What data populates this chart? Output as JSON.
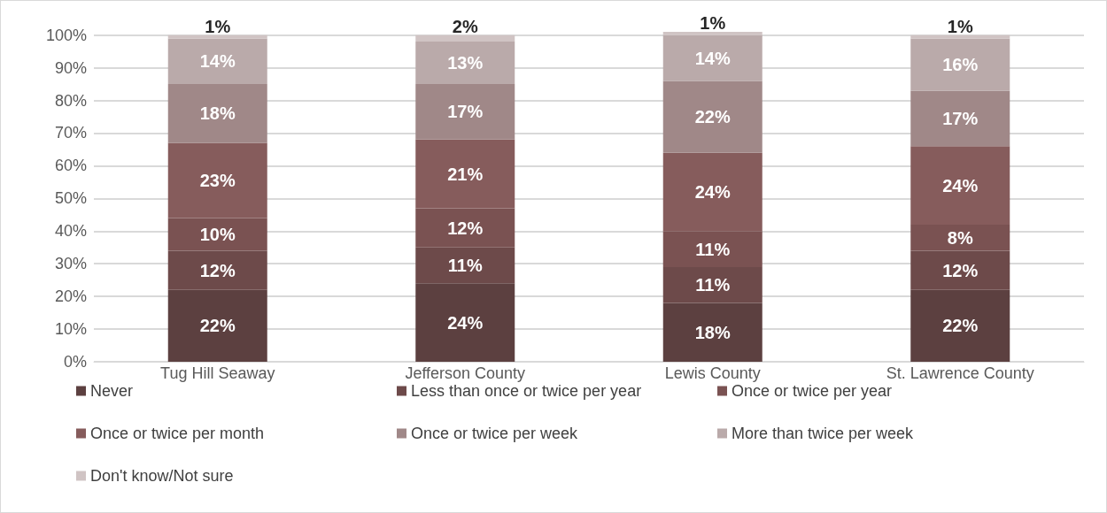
{
  "chart_data": {
    "type": "bar",
    "stacked": true,
    "grid": "y",
    "legend": "bottom",
    "categories": [
      "Tug Hill Seaway",
      "Jefferson County",
      "Lewis County",
      "St. Lawrence County"
    ],
    "series": [
      {
        "name": "Never",
        "color": "#5c4040",
        "values": [
          22,
          24,
          18,
          22
        ],
        "value_labels": [
          "22%",
          "24%",
          "18%",
          "22%"
        ]
      },
      {
        "name": "Less than once or twice per year",
        "color": "#6d4a4a",
        "values": [
          12,
          11,
          11,
          12
        ],
        "value_labels": [
          "12%",
          "11%",
          "11%",
          "12%"
        ]
      },
      {
        "name": "Once or twice per year",
        "color": "#7a5252",
        "values": [
          10,
          12,
          11,
          8
        ],
        "value_labels": [
          "10%",
          "12%",
          "11%",
          "8%"
        ]
      },
      {
        "name": "Once or twice per month",
        "color": "#865c5c",
        "values": [
          23,
          21,
          24,
          24
        ],
        "value_labels": [
          "23%",
          "21%",
          "24%",
          "24%"
        ]
      },
      {
        "name": "Once or twice per week",
        "color": "#a08888",
        "values": [
          18,
          17,
          22,
          17
        ],
        "value_labels": [
          "18%",
          "17%",
          "22%",
          "17%"
        ]
      },
      {
        "name": "More than twice per week",
        "color": "#baaaaa",
        "values": [
          14,
          13,
          14,
          16
        ],
        "value_labels": [
          "14%",
          "13%",
          "14%",
          "16%"
        ]
      },
      {
        "name": "Don't know/Not sure",
        "color": "#d0c4c4",
        "values": [
          1,
          2,
          1,
          1
        ],
        "value_labels": [
          "1%",
          "2%",
          "1%",
          "1%"
        ]
      }
    ],
    "ylim": [
      0,
      101
    ],
    "yticks": [
      {
        "value": 0,
        "label": "0%"
      },
      {
        "value": 10,
        "label": "10%"
      },
      {
        "value": 20,
        "label": "20%"
      },
      {
        "value": 30,
        "label": "30%"
      },
      {
        "value": 40,
        "label": "40%"
      },
      {
        "value": 50,
        "label": "50%"
      },
      {
        "value": 60,
        "label": "60%"
      },
      {
        "value": 70,
        "label": "70%"
      },
      {
        "value": 80,
        "label": "80%"
      },
      {
        "value": 90,
        "label": "90%"
      },
      {
        "value": 100,
        "label": "100%"
      }
    ]
  }
}
